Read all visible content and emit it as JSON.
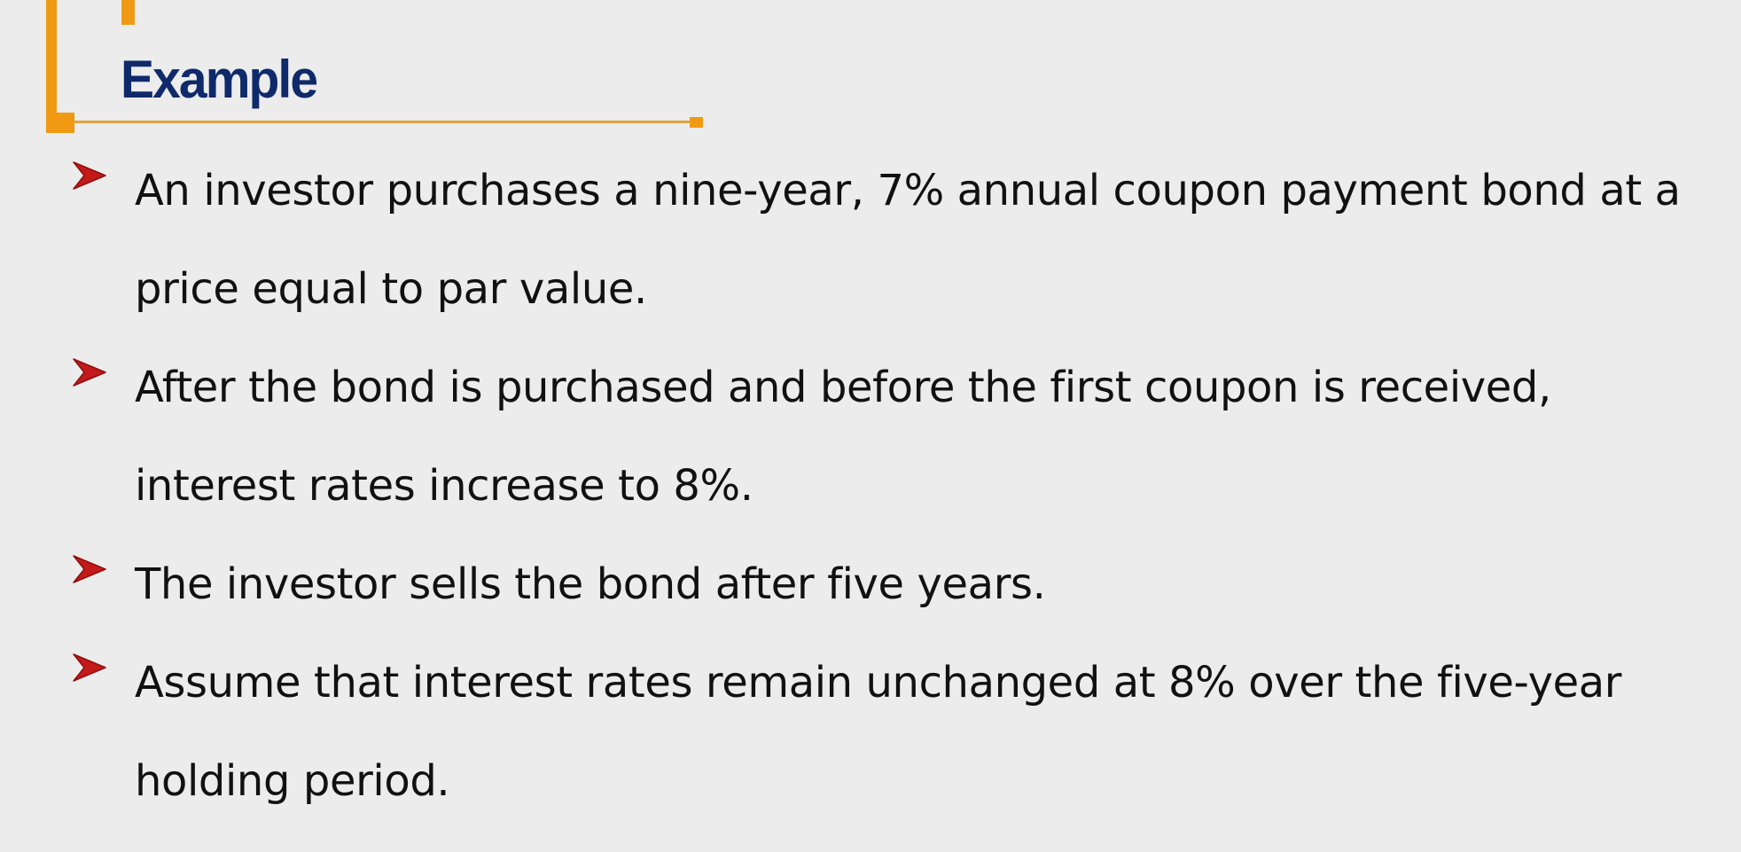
{
  "slide": {
    "title": "Example",
    "colors": {
      "accent": "#ef9a12",
      "title": "#0f2a6b",
      "bullet_arrow": "#c41a1a",
      "text": "#111111",
      "background": "#ececec"
    },
    "bullet_icon": "arrow-right-icon",
    "bullets": [
      {
        "text": "An investor purchases a nine-year, 7% annual coupon payment bond at a price equal to par value."
      },
      {
        "text": "After the bond is purchased and before the first coupon is received, interest rates increase to 8%."
      },
      {
        "text": "The investor sells the bond after five years."
      },
      {
        "text": "Assume that interest rates remain unchanged at 8% over the five-year holding period."
      }
    ]
  }
}
